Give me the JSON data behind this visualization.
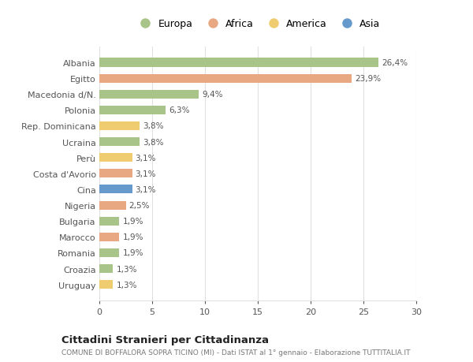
{
  "categories": [
    "Albania",
    "Egitto",
    "Macedonia d/N.",
    "Polonia",
    "Rep. Dominicana",
    "Ucraina",
    "Perù",
    "Costa d'Avorio",
    "Cina",
    "Nigeria",
    "Bulgaria",
    "Marocco",
    "Romania",
    "Croazia",
    "Uruguay"
  ],
  "values": [
    26.4,
    23.9,
    9.4,
    6.3,
    3.8,
    3.8,
    3.1,
    3.1,
    3.1,
    2.5,
    1.9,
    1.9,
    1.9,
    1.3,
    1.3
  ],
  "labels": [
    "26,4%",
    "23,9%",
    "9,4%",
    "6,3%",
    "3,8%",
    "3,8%",
    "3,1%",
    "3,1%",
    "3,1%",
    "2,5%",
    "1,9%",
    "1,9%",
    "1,9%",
    "1,3%",
    "1,3%"
  ],
  "continent": [
    "Europa",
    "Africa",
    "Europa",
    "Europa",
    "America",
    "Europa",
    "America",
    "Africa",
    "Asia",
    "Africa",
    "Europa",
    "Africa",
    "Europa",
    "Europa",
    "America"
  ],
  "colors": {
    "Europa": "#a8c488",
    "Africa": "#e8a882",
    "America": "#f0cc70",
    "Asia": "#6699cc"
  },
  "legend_order": [
    "Europa",
    "Africa",
    "America",
    "Asia"
  ],
  "xlim": [
    0,
    30
  ],
  "xticks": [
    0,
    5,
    10,
    15,
    20,
    25,
    30
  ],
  "title": "Cittadini Stranieri per Cittadinanza",
  "subtitle": "COMUNE DI BOFFALORA SOPRA TICINO (MI) - Dati ISTAT al 1° gennaio - Elaborazione TUTTITALIA.IT",
  "bg_color": "#ffffff",
  "plot_bg_color": "#ffffff",
  "grid_color": "#e0e0e0",
  "text_color": "#555555",
  "label_color": "#555555"
}
